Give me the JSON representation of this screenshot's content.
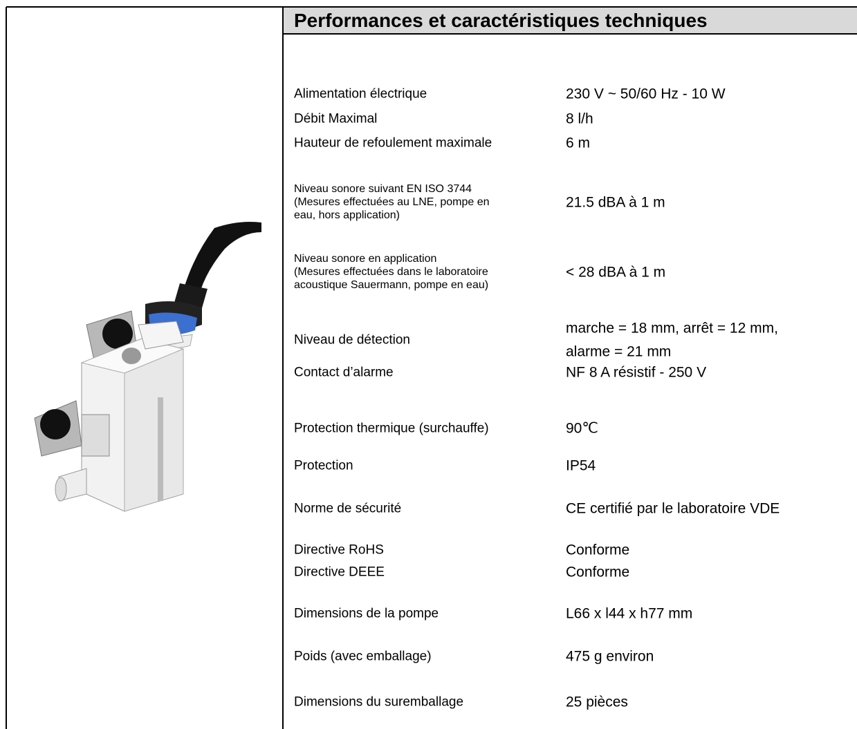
{
  "header": {
    "title": "Performances et caractéristiques techniques"
  },
  "table": {
    "rows": [
      {
        "label": "Alimentation électrique",
        "value": "230 V ~ 50/60 Hz - 10 W"
      },
      {
        "label": "Débit Maximal",
        "value": "8 l/h"
      },
      {
        "label": "Hauteur de refoulement maximale",
        "value": "6 m"
      },
      {
        "label_lines": [
          "Niveau sonore suivant EN ISO 3744",
          "(Mesures effectuées au LNE, pompe en",
          "eau, hors application)"
        ],
        "value": "21.5 dBA à 1 m"
      },
      {
        "label_lines": [
          "Niveau sonore en application",
          "(Mesures effectuées dans le laboratoire",
          "acoustique Sauermann, pompe en eau)"
        ],
        "value": "< 28 dBA à 1 m"
      },
      {
        "label": "Niveau de détection",
        "value_lines": [
          "marche = 18 mm,  arrêt = 12 mm,",
          "alarme = 21 mm"
        ]
      },
      {
        "label": "Contact  d’alarme",
        "value": "NF 8 A résistif - 250 V"
      },
      {
        "label": "Protection thermique (surchauffe)",
        "value": "90℃"
      },
      {
        "label": "Protection",
        "value": "IP54"
      },
      {
        "label": "Norme de sécurité",
        "value": "CE certifié par le laboratoire VDE"
      },
      {
        "label": "Directive RoHS",
        "value": "Conforme"
      },
      {
        "label": "Directive  DEEE",
        "value": "Conforme"
      },
      {
        "label": "Dimensions de la pompe",
        "value": "L66 x  l44 x h77 mm"
      },
      {
        "label": "Poids (avec emballage)",
        "value": "475 g environ"
      },
      {
        "label": "Dimensions du suremballage",
        "value": "25 pièces"
      }
    ]
  }
}
